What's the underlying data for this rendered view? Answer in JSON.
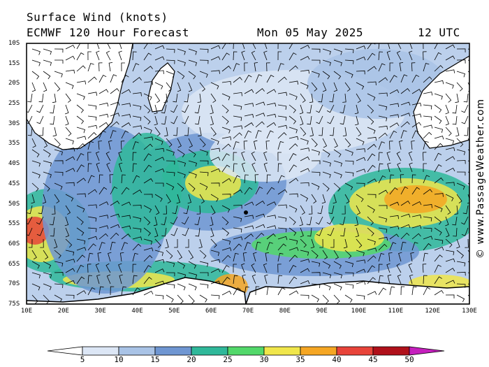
{
  "header": {
    "title": "Surface Wind (knots)",
    "model": "ECMWF 120 Hour Forecast",
    "date": "Mon 05 May 2025",
    "time": "12 UTC"
  },
  "credit": "© www.PassageWeather.com",
  "map": {
    "lat_labels": [
      "10S",
      "15S",
      "20S",
      "25S",
      "30S",
      "35S",
      "40S",
      "45S",
      "50S",
      "55S",
      "60S",
      "65S",
      "70S",
      "75S"
    ],
    "lon_labels": [
      "10E",
      "20E",
      "30E",
      "40E",
      "50E",
      "60E",
      "70E",
      "80E",
      "90E",
      "100E",
      "110E",
      "120E",
      "130E"
    ],
    "lat_range": [
      -10,
      -75
    ],
    "lon_range": [
      10,
      130
    ]
  },
  "colorbar": {
    "labels": [
      "5",
      "10",
      "15",
      "20",
      "25",
      "30",
      "35",
      "40",
      "45",
      "50"
    ],
    "colors": [
      "#ffffff",
      "#dce6f5",
      "#a9c3e6",
      "#6f96d2",
      "#2fb89a",
      "#52d86a",
      "#f0e64b",
      "#f5a623",
      "#e8443a",
      "#b0101a",
      "#c51fbd"
    ]
  },
  "palette": {
    "ocean_calm": "#c6d6ef",
    "land": "#ffffff",
    "coast": "#000000"
  }
}
